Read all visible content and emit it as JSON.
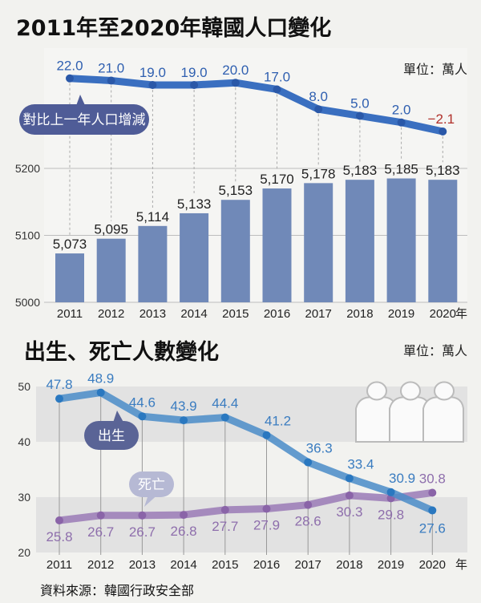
{
  "colors": {
    "line_top": "#3a6fc0",
    "bar": "#7089b8",
    "label_blue": "#2f5fb0",
    "label_red": "#b0302a",
    "birth": "#4a8cc8",
    "death": "#9a7ab6",
    "bubble_top": "#4f5c97",
    "bubble_birth": "#5a6496",
    "bubble_death": "#b6b9d4"
  },
  "chart_data": [
    {
      "type": "bar",
      "title": "2011年至2020年韓國人口變化",
      "unit": "單位：萬人",
      "year_suffix": "年",
      "categories": [
        "2011",
        "2012",
        "2013",
        "2014",
        "2015",
        "2016",
        "2017",
        "2018",
        "2019",
        "2020"
      ],
      "values": [
        5073,
        5095,
        5114,
        5133,
        5153,
        5170,
        5178,
        5183,
        5185,
        5183
      ],
      "value_labels": [
        "5,073",
        "5,095",
        "5,114",
        "5,133",
        "5,153",
        "5,170",
        "5,178",
        "5,183",
        "5,185",
        "5,183"
      ],
      "ylim": [
        5000,
        5200
      ],
      "yticks": [
        "5000",
        "5100",
        "5200"
      ],
      "line_series": {
        "name": "對比上一年人口增減",
        "values": [
          22.0,
          21.0,
          19.0,
          19.0,
          20.0,
          17.0,
          8.0,
          5.0,
          2.0,
          -2.1
        ],
        "labels": [
          "22.0",
          "21.0",
          "19.0",
          "19.0",
          "20.0",
          "17.0",
          "8.0",
          "5.0",
          "2.0",
          "−2.1"
        ]
      }
    },
    {
      "type": "line",
      "title": "出生、死亡人數變化",
      "unit": "單位：萬人",
      "year_suffix": "年",
      "categories": [
        "2011",
        "2012",
        "2013",
        "2014",
        "2015",
        "2016",
        "2017",
        "2018",
        "2019",
        "2020"
      ],
      "ylim": [
        20,
        50
      ],
      "yticks": [
        "20",
        "30",
        "40",
        "50"
      ],
      "series": [
        {
          "name": "出生",
          "values": [
            47.8,
            48.9,
            44.6,
            43.9,
            44.4,
            41.2,
            36.3,
            33.4,
            30.9,
            27.6
          ],
          "labels": [
            "47.8",
            "48.9",
            "44.6",
            "43.9",
            "44.4",
            "41.2",
            "36.3",
            "33.4",
            "30.9",
            "27.6"
          ]
        },
        {
          "name": "死亡",
          "values": [
            25.8,
            26.7,
            26.7,
            26.8,
            27.7,
            27.9,
            28.6,
            30.3,
            29.8,
            30.8
          ],
          "labels": [
            "25.8",
            "26.7",
            "26.7",
            "26.8",
            "27.7",
            "27.9",
            "28.6",
            "30.3",
            "29.8",
            "30.8"
          ]
        }
      ]
    }
  ],
  "source": "資料來源：韓國行政安全部"
}
